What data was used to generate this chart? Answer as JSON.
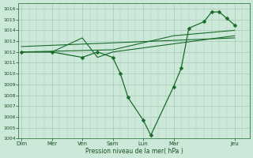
{
  "background_color": "#cce8d8",
  "grid_color": "#a8c8b8",
  "line_color": "#1a6b2a",
  "marker_color": "#1a6b2a",
  "xlabel": "Pression niveau de la mer( hPa )",
  "ylim": [
    1004,
    1016.5
  ],
  "yticks": [
    1004,
    1005,
    1006,
    1007,
    1008,
    1009,
    1010,
    1011,
    1012,
    1013,
    1014,
    1015,
    1016
  ],
  "xtick_major_labels": [
    "Dim",
    "Mer",
    "Ven",
    "Sam",
    "Lun",
    "Mar",
    "Jeu"
  ],
  "xtick_major_positions": [
    0,
    2,
    4,
    6,
    8,
    10,
    14
  ],
  "xlim": [
    -0.2,
    15.0
  ],
  "series": [
    {
      "x": [
        0,
        2,
        4,
        5,
        6,
        6.5,
        7,
        8,
        8.5,
        10,
        10.5,
        11,
        12,
        12.5,
        13,
        13.5,
        14
      ],
      "y": [
        1012,
        1012,
        1011.5,
        1012,
        1011.5,
        1010,
        1007.8,
        1005.7,
        1004.3,
        1008.8,
        1010.5,
        1014.2,
        1014.8,
        1015.7,
        1015.7,
        1015.1,
        1014.5
      ],
      "has_markers": true
    },
    {
      "x": [
        0,
        2,
        4,
        5,
        6,
        14
      ],
      "y": [
        1012,
        1012,
        1013.3,
        1011.5,
        1012,
        1013.5
      ],
      "has_markers": false
    },
    {
      "x": [
        0,
        6,
        10,
        14
      ],
      "y": [
        1012,
        1012.2,
        1013.5,
        1014.0
      ],
      "has_markers": false
    },
    {
      "x": [
        0,
        14
      ],
      "y": [
        1012.5,
        1013.3
      ],
      "has_markers": false
    }
  ]
}
